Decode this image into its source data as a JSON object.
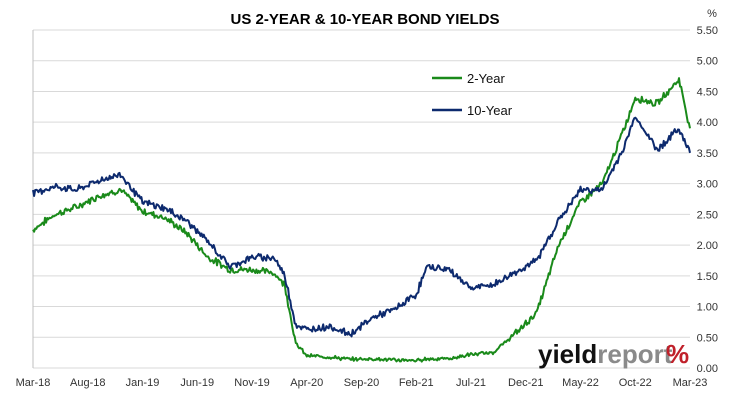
{
  "chart_data": {
    "type": "line",
    "title": "US 2-YEAR & 10-YEAR BOND YIELDS",
    "unit_label": "%",
    "x_ticks": [
      "Mar-18",
      "Aug-18",
      "Jan-19",
      "Jun-19",
      "Nov-19",
      "Apr-20",
      "Sep-20",
      "Feb-21",
      "Jul-21",
      "Dec-21",
      "May-22",
      "Oct-22",
      "Mar-23"
    ],
    "y_ticks": [
      "0.00",
      "0.50",
      "1.00",
      "1.50",
      "2.00",
      "2.50",
      "3.00",
      "3.50",
      "4.00",
      "4.50",
      "5.00",
      "5.50"
    ],
    "ylim": [
      0,
      5.5
    ],
    "y_axis_side": "right",
    "grid": true,
    "legend_position": "top-right",
    "x_dates": [
      "2018-03",
      "2018-05",
      "2018-07",
      "2018-09",
      "2018-11",
      "2019-01",
      "2019-03",
      "2019-05",
      "2019-07",
      "2019-09",
      "2019-11",
      "2020-01",
      "2020-02",
      "2020-03",
      "2020-04",
      "2020-06",
      "2020-08",
      "2020-10",
      "2020-12",
      "2021-02",
      "2021-03",
      "2021-05",
      "2021-07",
      "2021-09",
      "2021-11",
      "2022-01",
      "2022-03",
      "2022-05",
      "2022-07",
      "2022-09",
      "2022-10",
      "2022-12",
      "2023-02",
      "2023-03"
    ],
    "series": [
      {
        "name": "2-Year",
        "color": "#1a8a1a",
        "values": [
          2.25,
          2.5,
          2.62,
          2.8,
          2.9,
          2.55,
          2.45,
          2.2,
          1.8,
          1.6,
          1.6,
          1.55,
          1.35,
          0.4,
          0.2,
          0.18,
          0.14,
          0.15,
          0.13,
          0.12,
          0.15,
          0.15,
          0.22,
          0.25,
          0.55,
          0.9,
          2.0,
          2.7,
          3.0,
          3.9,
          4.4,
          4.3,
          4.7,
          3.9
        ]
      },
      {
        "name": "10-Year",
        "color": "#0d2a6e",
        "values": [
          2.85,
          2.95,
          2.9,
          3.05,
          3.15,
          2.7,
          2.6,
          2.4,
          2.05,
          1.65,
          1.8,
          1.8,
          1.5,
          0.7,
          0.62,
          0.68,
          0.55,
          0.82,
          0.95,
          1.2,
          1.65,
          1.6,
          1.3,
          1.35,
          1.55,
          1.75,
          2.4,
          2.9,
          2.9,
          3.6,
          4.1,
          3.55,
          3.9,
          3.5
        ]
      }
    ]
  },
  "logo": {
    "word1": "yield",
    "word2": "report",
    "symbol": "%"
  }
}
